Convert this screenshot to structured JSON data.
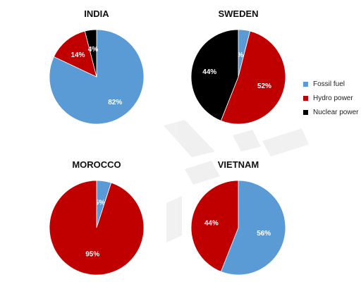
{
  "colors": {
    "fossil": "#5b9bd5",
    "hydro": "#c00000",
    "nuclear": "#000000"
  },
  "legend": [
    {
      "key": "fossil",
      "label": "Fossil fuel",
      "color": "#5b9bd5"
    },
    {
      "key": "hydro",
      "label": "Hydro power",
      "color": "#c00000"
    },
    {
      "key": "nuclear",
      "label": "Nuclear power",
      "color": "#000000"
    }
  ],
  "chart_data": [
    {
      "type": "pie",
      "title": "INDIA",
      "slices": [
        {
          "label": "Fossil fuel",
          "key": "fossil",
          "value": 82,
          "text": "82%"
        },
        {
          "label": "Hydro power",
          "key": "hydro",
          "value": 14,
          "text": "14%"
        },
        {
          "label": "Nuclear power",
          "key": "nuclear",
          "value": 4,
          "text": "4%"
        }
      ]
    },
    {
      "type": "pie",
      "title": "SWEDEN",
      "slices": [
        {
          "label": "Fossil fuel",
          "key": "fossil",
          "value": 4,
          "text": "4%"
        },
        {
          "label": "Hydro power",
          "key": "hydro",
          "value": 52,
          "text": "52%"
        },
        {
          "label": "Nuclear power",
          "key": "nuclear",
          "value": 44,
          "text": "44%"
        }
      ]
    },
    {
      "type": "pie",
      "title": "MOROCCO",
      "slices": [
        {
          "label": "Fossil fuel",
          "key": "fossil",
          "value": 5,
          "text": "5%"
        },
        {
          "label": "Hydro power",
          "key": "hydro",
          "value": 95,
          "text": "95%"
        }
      ]
    },
    {
      "type": "pie",
      "title": "VIETNAM",
      "slices": [
        {
          "label": "Fossil fuel",
          "key": "fossil",
          "value": 56,
          "text": "56%"
        },
        {
          "label": "Hydro power",
          "key": "hydro",
          "value": 44,
          "text": "44%"
        }
      ]
    }
  ]
}
